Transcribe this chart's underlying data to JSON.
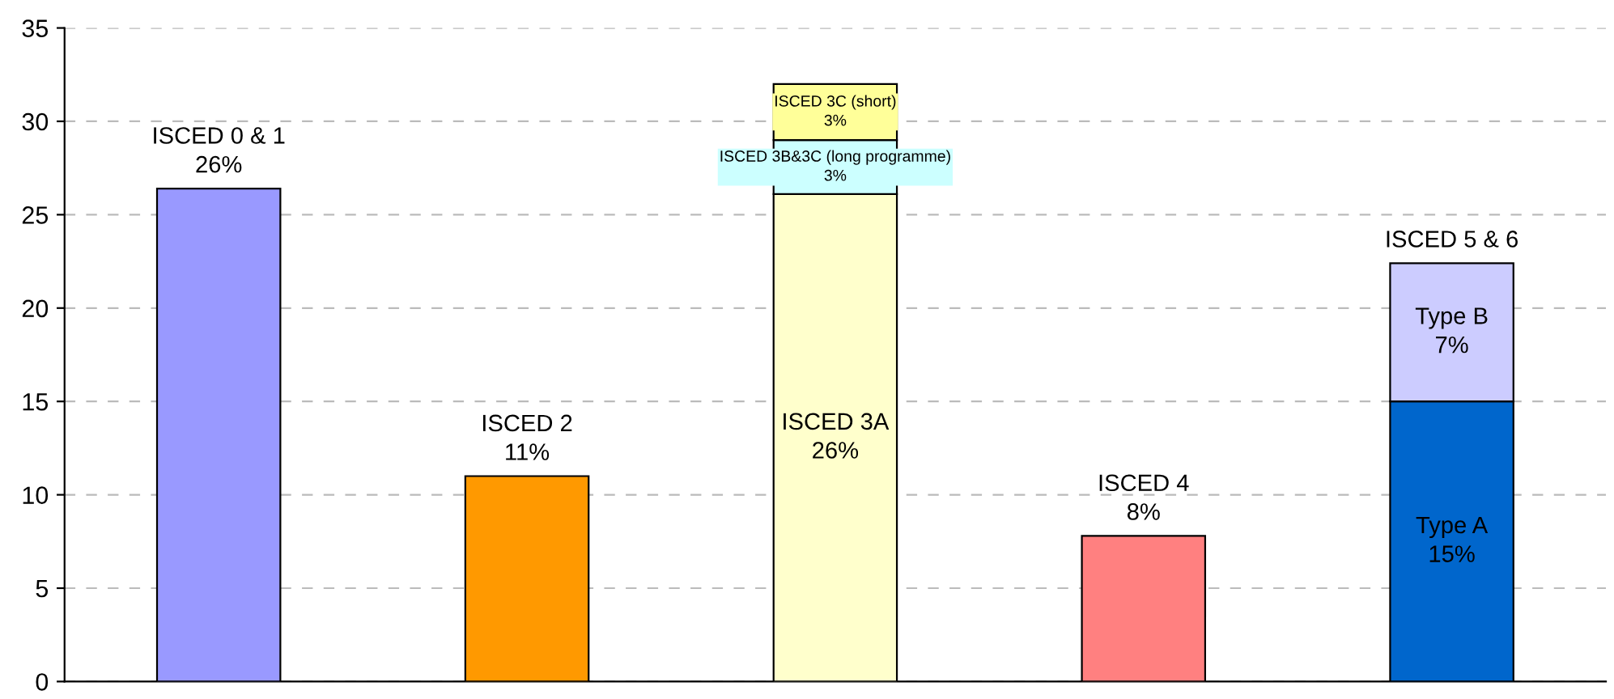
{
  "chart_data": {
    "type": "bar",
    "stacked": true,
    "categories": [
      null,
      null,
      null,
      null,
      null
    ],
    "series": [
      {
        "colors": [
          "#9999ff",
          "#ff9900",
          "#ffffcc",
          "#ff8080",
          "#0066cc"
        ],
        "values": [
          26.4,
          11.0,
          26.1,
          7.8,
          15.0
        ],
        "value_labels": [
          "ISCED 0 & 1\n26%",
          "ISCED 2\n11%",
          "ISCED 3A\n26%",
          "ISCED 4\n8%",
          "Type A\n15%"
        ]
      },
      {
        "colors": [
          null,
          null,
          "#ccffff",
          null,
          "#ccccff"
        ],
        "values": [
          null,
          null,
          2.9,
          null,
          7.4
        ],
        "value_labels": [
          null,
          null,
          "ISCED 3B&3C (long programme)\n3%",
          null,
          "Type B\n7%"
        ]
      },
      {
        "colors": [
          null,
          null,
          "#ffff99",
          null,
          null
        ],
        "values": [
          null,
          null,
          3.0,
          null,
          null
        ],
        "value_labels": [
          null,
          null,
          "ISCED 3C (short)\n3%",
          null,
          null
        ]
      }
    ],
    "totals": [
      null,
      null,
      null,
      null,
      "ISCED 5 & 6"
    ],
    "ylim": [
      0,
      35
    ],
    "yticks": [
      0,
      5,
      10,
      15,
      20,
      25,
      30,
      35
    ],
    "grid": "y"
  }
}
